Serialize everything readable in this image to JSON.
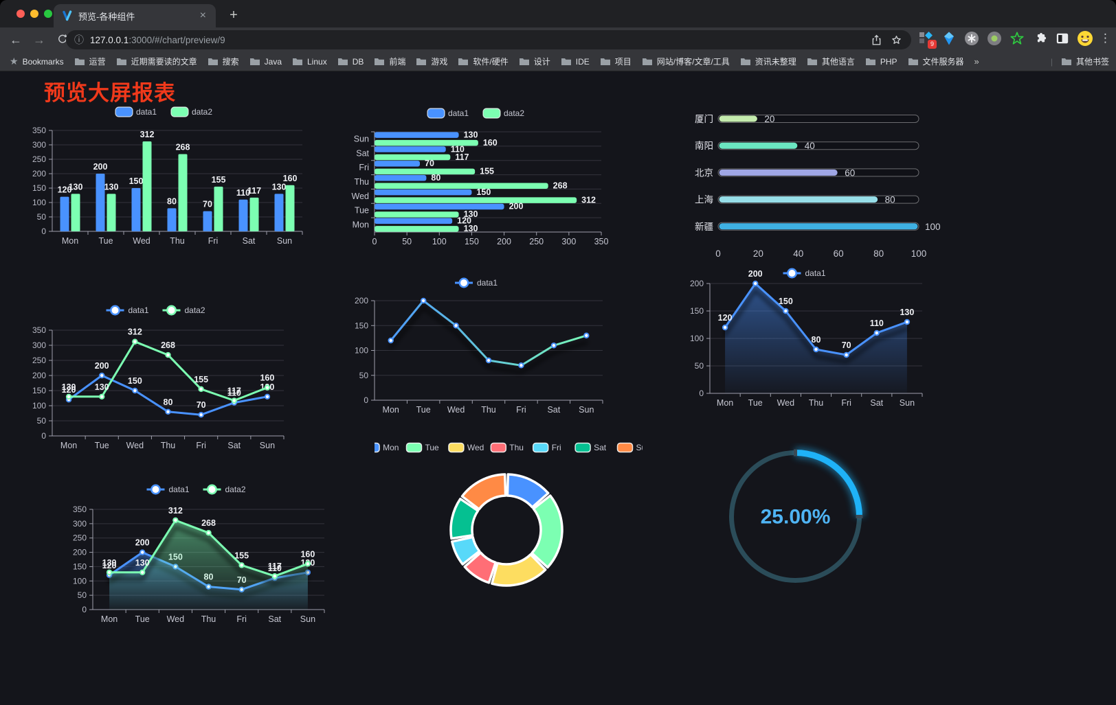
{
  "browser": {
    "traffic_lights": {
      "close": "#ff5f57",
      "minimize": "#febc2e",
      "zoom": "#28c840"
    },
    "tab": {
      "title": "预览-各种组件",
      "close_glyph": "×",
      "new_tab_glyph": "+"
    },
    "toolbar": {
      "back_glyph": "←",
      "forward_glyph": "→",
      "info_glyph": "ⓘ",
      "menu_glyph": "⋮",
      "extension_badge": "9"
    },
    "url": {
      "host": "127.0.0.1",
      "path": ":3000/#/chart/preview/9"
    },
    "bookmarks_bar": {
      "star_glyph": "★",
      "label": "Bookmarks",
      "folders": [
        "运营",
        "近期需要读的文章",
        "搜索",
        "Java",
        "Linux",
        "DB",
        "前端",
        "游戏",
        "软件/硬件",
        "设计",
        "IDE",
        "项目",
        "网站/博客/文章/工具",
        "资讯未整理",
        "其他语言",
        "PHP",
        "文件服务器"
      ],
      "overflow_glyph": "»",
      "other": "其他书签"
    }
  },
  "page": {
    "title": "预览大屏报表"
  },
  "chart_data": [
    {
      "id": "grouped-bar",
      "type": "bar",
      "categories": [
        "Mon",
        "Tue",
        "Wed",
        "Thu",
        "Fri",
        "Sat",
        "Sun"
      ],
      "series": [
        {
          "name": "data1",
          "color": "#4992ff",
          "values": [
            120,
            200,
            150,
            80,
            70,
            110,
            130
          ]
        },
        {
          "name": "data2",
          "color": "#7cffb2",
          "values": [
            130,
            130,
            312,
            268,
            155,
            117,
            160
          ]
        }
      ],
      "ylim": [
        0,
        350
      ],
      "ytick": 50,
      "grid": true,
      "legend_position": "top",
      "data_labels": true
    },
    {
      "id": "horizontal-bar",
      "type": "bar-horizontal",
      "categories": [
        "Mon",
        "Tue",
        "Wed",
        "Thu",
        "Fri",
        "Sat",
        "Sun"
      ],
      "display_order_top_to_bottom": [
        "Sun",
        "Sat",
        "Fri",
        "Thu",
        "Wed",
        "Tue",
        "Mon"
      ],
      "series": [
        {
          "name": "data1",
          "color": "#4992ff",
          "values": [
            120,
            200,
            150,
            80,
            70,
            110,
            130
          ]
        },
        {
          "name": "data2",
          "color": "#7cffb2",
          "values": [
            130,
            130,
            312,
            268,
            155,
            117,
            160
          ]
        }
      ],
      "xlim": [
        0,
        350
      ],
      "xtick": 50,
      "grid": true,
      "legend_position": "top",
      "data_labels": true
    },
    {
      "id": "capsule-progress",
      "type": "bar",
      "subtype": "capsule",
      "categories": [
        "厦门",
        "南阳",
        "北京",
        "上海",
        "新疆"
      ],
      "values": [
        20,
        40,
        60,
        80,
        100
      ],
      "colors": [
        "#c4ebad",
        "#6be6c1",
        "#a0a7e6",
        "#96dee8",
        "#3fb1e3"
      ],
      "xlim": [
        0,
        100
      ],
      "xtick": 20,
      "data_labels": true
    },
    {
      "id": "dual-line",
      "type": "line",
      "categories": [
        "Mon",
        "Tue",
        "Wed",
        "Thu",
        "Fri",
        "Sat",
        "Sun"
      ],
      "series": [
        {
          "name": "data1",
          "color": "#4992ff",
          "values": [
            120,
            200,
            150,
            80,
            70,
            110,
            130
          ]
        },
        {
          "name": "data2",
          "color": "#7cffb2",
          "values": [
            130,
            130,
            312,
            268,
            155,
            117,
            160
          ]
        }
      ],
      "ylim": [
        0,
        350
      ],
      "ytick": 50,
      "grid": true,
      "legend_position": "top",
      "data_labels": true,
      "shadow": false,
      "area": false
    },
    {
      "id": "gradient-line",
      "type": "line",
      "categories": [
        "Mon",
        "Tue",
        "Wed",
        "Thu",
        "Fri",
        "Sat",
        "Sun"
      ],
      "series": [
        {
          "name": "data1",
          "color": "#4992ff",
          "color_end": "#7cffb2",
          "values": [
            120,
            200,
            150,
            80,
            70,
            110,
            130
          ]
        }
      ],
      "ylim": [
        0,
        200
      ],
      "ytick": 50,
      "grid": true,
      "legend_position": "top",
      "data_labels": false,
      "shadow": true,
      "area": false
    },
    {
      "id": "area-line",
      "type": "line",
      "categories": [
        "Mon",
        "Tue",
        "Wed",
        "Thu",
        "Fri",
        "Sat",
        "Sun"
      ],
      "series": [
        {
          "name": "data1",
          "color": "#4992ff",
          "values": [
            120,
            200,
            150,
            80,
            70,
            110,
            130
          ],
          "area": true
        }
      ],
      "ylim": [
        0,
        200
      ],
      "ytick": 50,
      "grid": true,
      "legend_position": "top",
      "data_labels": true,
      "shadow": true
    },
    {
      "id": "dual-area-line",
      "type": "line",
      "categories": [
        "Mon",
        "Tue",
        "Wed",
        "Thu",
        "Fri",
        "Sat",
        "Sun"
      ],
      "series": [
        {
          "name": "data1",
          "color": "#4992ff",
          "values": [
            120,
            200,
            150,
            80,
            70,
            110,
            130
          ],
          "area": true
        },
        {
          "name": "data2",
          "color": "#7cffb2",
          "values": [
            130,
            130,
            312,
            268,
            155,
            117,
            160
          ],
          "area": true
        }
      ],
      "ylim": [
        0,
        350
      ],
      "ytick": 50,
      "grid": true,
      "legend_position": "top",
      "data_labels": true,
      "shadow": true
    },
    {
      "id": "donut",
      "type": "pie",
      "subtype": "donut",
      "categories": [
        "Mon",
        "Tue",
        "Wed",
        "Thu",
        "Fri",
        "Sat",
        "Sun"
      ],
      "values": [
        120,
        200,
        150,
        80,
        70,
        110,
        130
      ],
      "colors": [
        "#4992ff",
        "#7cffb2",
        "#fddd60",
        "#ff6e76",
        "#58d9f9",
        "#05c091",
        "#ff8a45"
      ],
      "legend_position": "top"
    },
    {
      "id": "gauge",
      "type": "gauge",
      "percent": 25,
      "value_label": "25.00%",
      "progress_color": "#1fb2f7",
      "track_color": "#2b4c59",
      "text_color": "#4fb4f4"
    }
  ]
}
